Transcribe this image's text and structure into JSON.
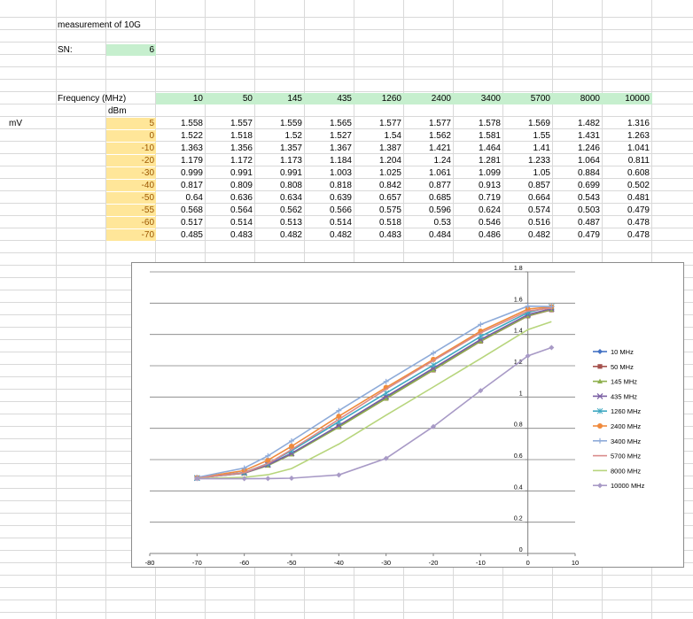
{
  "sheet": {
    "title": "measurement of 10G",
    "sn_label": "SN:",
    "sn_value": "6",
    "freq_label": "Frequency (MHz)",
    "unit_label": "dBm",
    "row_unit": "mV",
    "frequencies": [
      "10",
      "50",
      "145",
      "435",
      "1260",
      "2400",
      "3400",
      "5700",
      "8000",
      "10000"
    ],
    "rows": [
      {
        "dbm": "5",
        "vals": [
          "1.558",
          "1.557",
          "1.559",
          "1.565",
          "1.577",
          "1.577",
          "1.578",
          "1.569",
          "1.482",
          "1.316"
        ]
      },
      {
        "dbm": "0",
        "vals": [
          "1.522",
          "1.518",
          "1.52",
          "1.527",
          "1.54",
          "1.562",
          "1.581",
          "1.55",
          "1.431",
          "1.263"
        ]
      },
      {
        "dbm": "-10",
        "vals": [
          "1.363",
          "1.356",
          "1.357",
          "1.367",
          "1.387",
          "1.421",
          "1.464",
          "1.41",
          "1.246",
          "1.041"
        ]
      },
      {
        "dbm": "-20",
        "vals": [
          "1.179",
          "1.172",
          "1.173",
          "1.184",
          "1.204",
          "1.24",
          "1.281",
          "1.233",
          "1.064",
          "0.811"
        ]
      },
      {
        "dbm": "-30",
        "vals": [
          "0.999",
          "0.991",
          "0.991",
          "1.003",
          "1.025",
          "1.061",
          "1.099",
          "1.05",
          "0.884",
          "0.608"
        ]
      },
      {
        "dbm": "-40",
        "vals": [
          "0.817",
          "0.809",
          "0.808",
          "0.818",
          "0.842",
          "0.877",
          "0.913",
          "0.857",
          "0.699",
          "0.502"
        ]
      },
      {
        "dbm": "-50",
        "vals": [
          "0.64",
          "0.636",
          "0.634",
          "0.639",
          "0.657",
          "0.685",
          "0.719",
          "0.664",
          "0.543",
          "0.481"
        ]
      },
      {
        "dbm": "-55",
        "vals": [
          "0.568",
          "0.564",
          "0.562",
          "0.566",
          "0.575",
          "0.596",
          "0.624",
          "0.574",
          "0.503",
          "0.479"
        ]
      },
      {
        "dbm": "-60",
        "vals": [
          "0.517",
          "0.514",
          "0.513",
          "0.514",
          "0.518",
          "0.53",
          "0.546",
          "0.516",
          "0.487",
          "0.478"
        ]
      },
      {
        "dbm": "-70",
        "vals": [
          "0.485",
          "0.483",
          "0.482",
          "0.482",
          "0.483",
          "0.484",
          "0.486",
          "0.482",
          "0.479",
          "0.478"
        ]
      }
    ]
  },
  "colors": {
    "header_fill": "#c6efce",
    "dbm_fill": "#ffe699",
    "grid": "#d9d9d9"
  },
  "chart_data": {
    "type": "line",
    "x": [
      5,
      0,
      -10,
      -20,
      -30,
      -40,
      -50,
      -55,
      -60,
      -70
    ],
    "xlim": [
      -80,
      10
    ],
    "ylim": [
      0,
      1.8
    ],
    "xticks": [
      "-80",
      "-70",
      "-60",
      "-50",
      "-40",
      "-30",
      "-20",
      "-10",
      "0",
      "10"
    ],
    "yticks": [
      "0",
      "0.2",
      "0.4",
      "0.6",
      "0.8",
      "1",
      "1.2",
      "1.4",
      "1.6",
      "1.8"
    ],
    "grid": "horizontal major gridlines",
    "legend_position": "right",
    "series": [
      {
        "name": "10 MHz",
        "color": "#4472c4",
        "marker": "diamond",
        "values": [
          1.558,
          1.522,
          1.363,
          1.179,
          0.999,
          0.817,
          0.64,
          0.568,
          0.517,
          0.485
        ]
      },
      {
        "name": "50 MHz",
        "color": "#a5514d",
        "marker": "square",
        "values": [
          1.557,
          1.518,
          1.356,
          1.172,
          0.991,
          0.809,
          0.636,
          0.564,
          0.514,
          0.483
        ]
      },
      {
        "name": "145 MHz",
        "color": "#8fb04e",
        "marker": "triangle",
        "values": [
          1.559,
          1.52,
          1.357,
          1.173,
          0.991,
          0.808,
          0.634,
          0.562,
          0.513,
          0.482
        ]
      },
      {
        "name": "435 MHz",
        "color": "#7a5fa3",
        "marker": "x",
        "values": [
          1.565,
          1.527,
          1.367,
          1.184,
          1.003,
          0.818,
          0.639,
          0.566,
          0.514,
          0.482
        ]
      },
      {
        "name": "1260 MHz",
        "color": "#3fa8c2",
        "marker": "star",
        "values": [
          1.577,
          1.54,
          1.387,
          1.204,
          1.025,
          0.842,
          0.657,
          0.575,
          0.518,
          0.483
        ]
      },
      {
        "name": "2400 MHz",
        "color": "#f08a3c",
        "marker": "circle",
        "values": [
          1.577,
          1.562,
          1.421,
          1.24,
          1.061,
          0.877,
          0.685,
          0.596,
          0.53,
          0.484
        ]
      },
      {
        "name": "3400 MHz",
        "color": "#8eabd9",
        "marker": "plus",
        "values": [
          1.578,
          1.581,
          1.464,
          1.281,
          1.099,
          0.913,
          0.719,
          0.624,
          0.546,
          0.486
        ]
      },
      {
        "name": "5700 MHz",
        "color": "#d98b8b",
        "marker": "none",
        "values": [
          1.569,
          1.55,
          1.41,
          1.233,
          1.05,
          0.857,
          0.664,
          0.574,
          0.516,
          0.482
        ]
      },
      {
        "name": "8000 MHz",
        "color": "#b7d57c",
        "marker": "none",
        "values": [
          1.482,
          1.431,
          1.246,
          1.064,
          0.884,
          0.699,
          0.543,
          0.503,
          0.487,
          0.479
        ]
      },
      {
        "name": "10000 MHz",
        "color": "#a89ac6",
        "marker": "diamond",
        "values": [
          1.316,
          1.263,
          1.041,
          0.811,
          0.608,
          0.502,
          0.481,
          0.479,
          0.478,
          0.478
        ]
      }
    ]
  }
}
